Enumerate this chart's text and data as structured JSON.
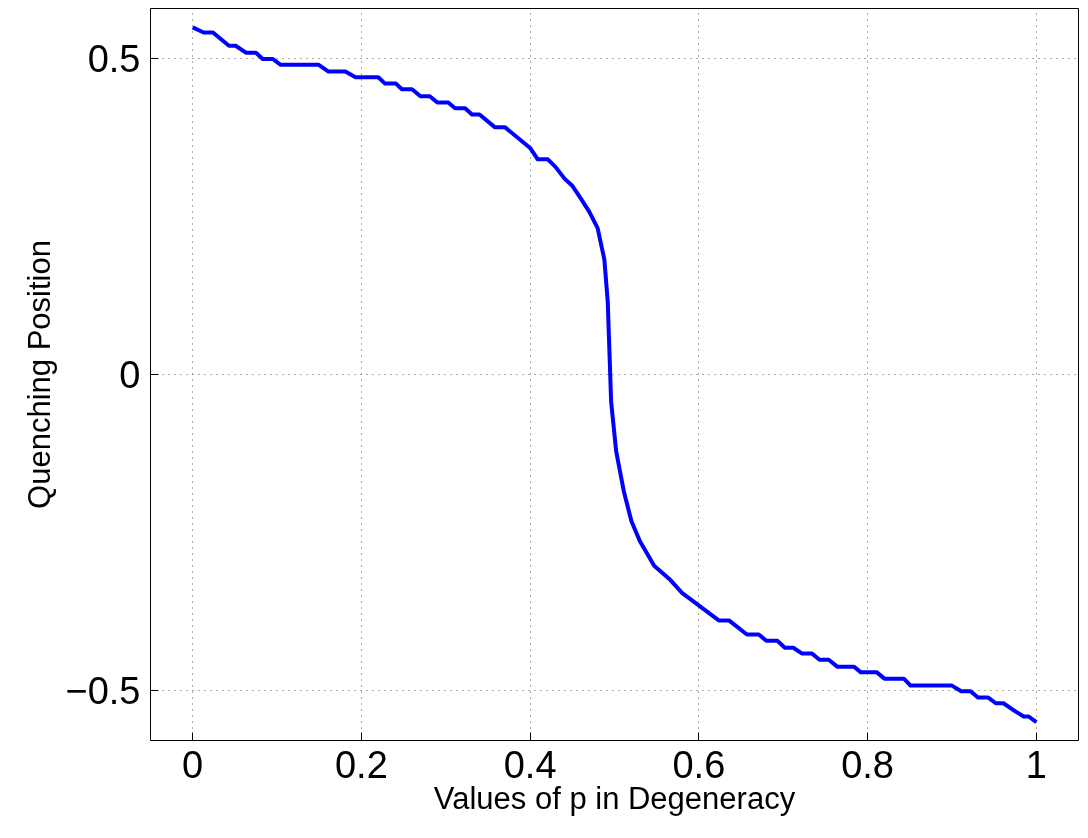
{
  "chart_data": {
    "type": "line",
    "xlabel": "Values of p in Degeneracy",
    "ylabel": "Quenching Position",
    "x": [
      0,
      0.013,
      0.024,
      0.043,
      0.051,
      0.063,
      0.075,
      0.083,
      0.095,
      0.104,
      0.149,
      0.161,
      0.181,
      0.193,
      0.22,
      0.228,
      0.241,
      0.248,
      0.26,
      0.27,
      0.281,
      0.29,
      0.303,
      0.311,
      0.323,
      0.331,
      0.34,
      0.358,
      0.37,
      0.4,
      0.409,
      0.421,
      0.43,
      0.441,
      0.45,
      0.459,
      0.47,
      0.48,
      0.488,
      0.492,
      0.496,
      0.502,
      0.511,
      0.52,
      0.53,
      0.547,
      0.565,
      0.58,
      0.624,
      0.636,
      0.657,
      0.671,
      0.68,
      0.693,
      0.702,
      0.712,
      0.722,
      0.734,
      0.743,
      0.754,
      0.764,
      0.784,
      0.792,
      0.811,
      0.82,
      0.843,
      0.851,
      0.9,
      0.911,
      0.922,
      0.931,
      0.943,
      0.952,
      0.961,
      0.973,
      0.985,
      0.991,
      1.0
    ],
    "series": [
      {
        "color": "#0000ff",
        "values": [
          0.55,
          0.542,
          0.542,
          0.521,
          0.521,
          0.51,
          0.51,
          0.5,
          0.5,
          0.491,
          0.491,
          0.48,
          0.48,
          0.471,
          0.471,
          0.461,
          0.461,
          0.452,
          0.452,
          0.441,
          0.441,
          0.431,
          0.431,
          0.422,
          0.422,
          0.412,
          0.412,
          0.392,
          0.392,
          0.359,
          0.341,
          0.341,
          0.329,
          0.31,
          0.299,
          0.281,
          0.258,
          0.232,
          0.182,
          0.115,
          -0.043,
          -0.122,
          -0.185,
          -0.232,
          -0.264,
          -0.303,
          -0.324,
          -0.346,
          -0.39,
          -0.39,
          -0.412,
          -0.412,
          -0.422,
          -0.422,
          -0.433,
          -0.433,
          -0.442,
          -0.442,
          -0.452,
          -0.452,
          -0.463,
          -0.463,
          -0.472,
          -0.472,
          -0.482,
          -0.482,
          -0.493,
          -0.493,
          -0.502,
          -0.502,
          -0.512,
          -0.512,
          -0.521,
          -0.521,
          -0.532,
          -0.542,
          -0.542,
          -0.551
        ]
      }
    ],
    "xlim": [
      -0.05,
      1.05
    ],
    "ylim": [
      -0.58,
      0.58
    ],
    "xticks": [
      0,
      0.2,
      0.4,
      0.6,
      0.8,
      1
    ],
    "yticks": [
      {
        "value": -0.5,
        "label": "−0.5"
      },
      0,
      0.5
    ],
    "grid": true,
    "line_style": "solid",
    "marker": "none"
  }
}
